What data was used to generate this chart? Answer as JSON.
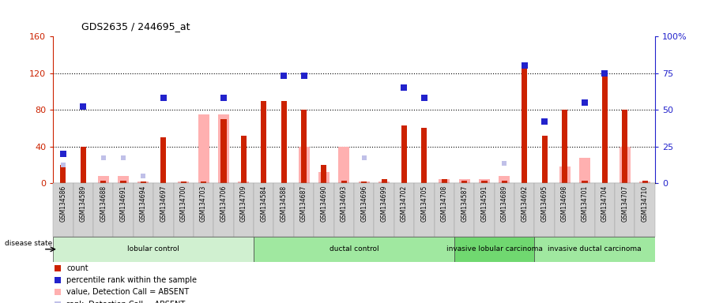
{
  "title": "GDS2635 / 244695_at",
  "samples": [
    "GSM134586",
    "GSM134589",
    "GSM134688",
    "GSM134691",
    "GSM134694",
    "GSM134697",
    "GSM134700",
    "GSM134703",
    "GSM134706",
    "GSM134709",
    "GSM134584",
    "GSM134588",
    "GSM134687",
    "GSM134690",
    "GSM134693",
    "GSM134696",
    "GSM134699",
    "GSM134702",
    "GSM134705",
    "GSM134708",
    "GSM134587",
    "GSM134591",
    "GSM134689",
    "GSM134692",
    "GSM134695",
    "GSM134698",
    "GSM134701",
    "GSM134704",
    "GSM134707",
    "GSM134710"
  ],
  "groups": [
    {
      "label": "lobular control",
      "start": 0,
      "end": 10,
      "color": "#d0f0d0"
    },
    {
      "label": "ductal control",
      "start": 10,
      "end": 20,
      "color": "#a0e8a0"
    },
    {
      "label": "invasive lobular carcinoma",
      "start": 20,
      "end": 24,
      "color": "#70d870"
    },
    {
      "label": "invasive ductal carcinoma",
      "start": 24,
      "end": 30,
      "color": "#a0e8a0"
    }
  ],
  "count": [
    20,
    40,
    3,
    3,
    2,
    50,
    2,
    2,
    70,
    52,
    90,
    90,
    80,
    20,
    3,
    2,
    5,
    63,
    60,
    5,
    3,
    3,
    3,
    125,
    52,
    80,
    3,
    120,
    80,
    3
  ],
  "percentile_rank": [
    20,
    52,
    null,
    null,
    null,
    58,
    null,
    null,
    58,
    null,
    null,
    73,
    73,
    null,
    null,
    null,
    null,
    65,
    58,
    null,
    null,
    null,
    null,
    80,
    42,
    null,
    55,
    75,
    null,
    null
  ],
  "value_absent": [
    null,
    null,
    8,
    8,
    2,
    null,
    2,
    75,
    75,
    2,
    null,
    null,
    40,
    12,
    40,
    2,
    2,
    null,
    null,
    5,
    5,
    5,
    8,
    null,
    null,
    18,
    28,
    null,
    40,
    2
  ],
  "rank_absent": [
    20,
    null,
    28,
    28,
    8,
    null,
    null,
    null,
    null,
    null,
    null,
    null,
    null,
    null,
    null,
    28,
    null,
    null,
    null,
    null,
    null,
    null,
    22,
    null,
    null,
    null,
    null,
    null,
    null,
    null
  ],
  "ylim_left": [
    0,
    160
  ],
  "ylim_right": [
    0,
    100
  ],
  "yticks_left": [
    0,
    40,
    80,
    120,
    160
  ],
  "ytick_labels_left": [
    "0",
    "40",
    "80",
    "120",
    "160"
  ],
  "yticks_right": [
    0,
    25,
    50,
    75,
    100
  ],
  "ytick_labels_right": [
    "0",
    "25",
    "50",
    "75",
    "100%"
  ],
  "count_color": "#cc2200",
  "percentile_color": "#2222cc",
  "value_absent_color": "#ffb0b0",
  "rank_absent_color": "#c0c0e8",
  "hgrid_at": [
    40,
    80,
    120
  ]
}
